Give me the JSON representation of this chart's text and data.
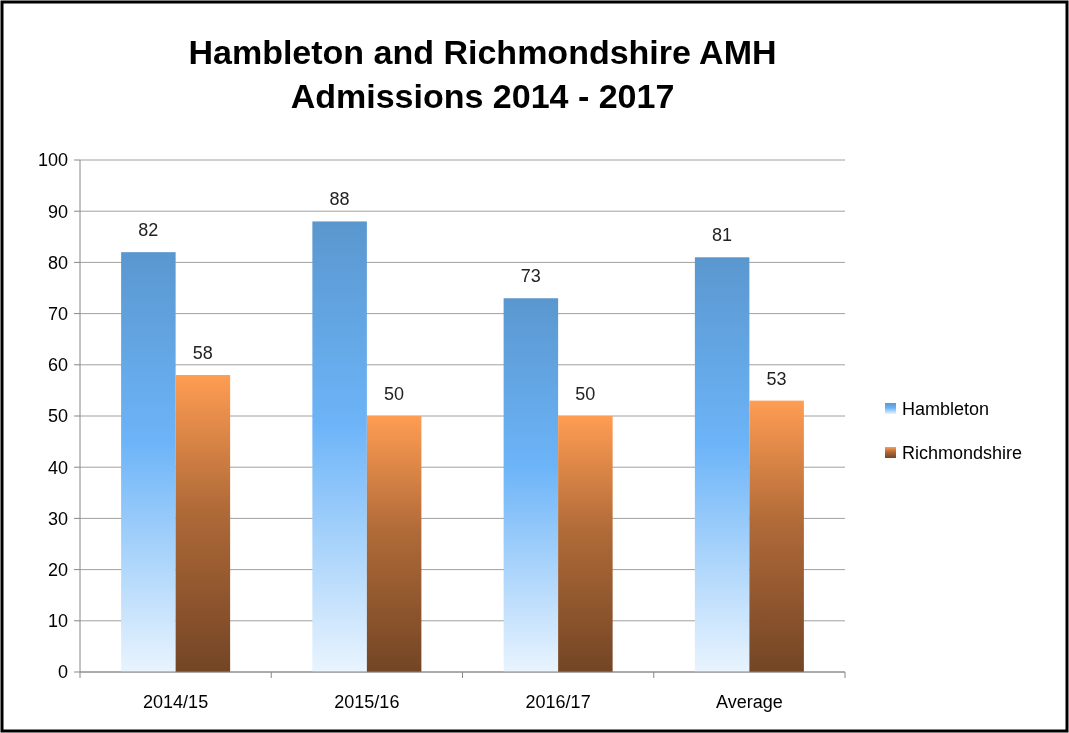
{
  "chart_data": {
    "type": "bar",
    "title": "Hambleton and Richmondshire AMH\nAdmissions 2014 - 2017",
    "categories": [
      "2014/15",
      "2015/16",
      "2016/17",
      "Average"
    ],
    "series": [
      {
        "name": "Hambleton",
        "color": "#6cb4f8",
        "values": [
          82,
          88,
          73,
          81
        ]
      },
      {
        "name": "Richmondshire",
        "color": "#b06a38",
        "values": [
          58,
          50,
          50,
          53
        ]
      }
    ],
    "ylim": [
      0,
      100
    ],
    "yticks": [
      0,
      10,
      20,
      30,
      40,
      50,
      60,
      70,
      80,
      90,
      100
    ],
    "grid": "y",
    "legend": "right",
    "data_labels": true
  }
}
